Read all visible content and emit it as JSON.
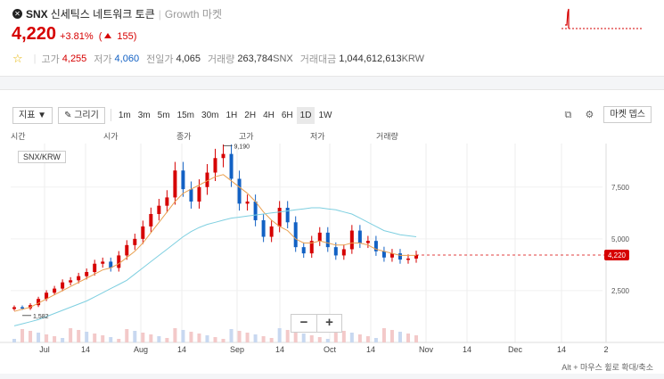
{
  "header": {
    "icon": "close-circle-icon",
    "symbol": "SNX",
    "name_ko": "신세틱스 네트워크 토큰",
    "separator": "|",
    "market": "Growth 마켓",
    "price": "4,220",
    "change_pct": "+3.81%",
    "change_abs_open": "(",
    "change_abs": "155",
    "change_abs_close": ")",
    "stats": [
      {
        "label": "고가",
        "value": "4,255",
        "tone": "red"
      },
      {
        "label": "저가",
        "value": "4,060",
        "tone": "blue"
      },
      {
        "label": "전일가",
        "value": "4,065",
        "tone": "plain"
      },
      {
        "label": "거래량",
        "value": "263,784",
        "unit": "SNX",
        "tone": "plain"
      },
      {
        "label": "거래대금",
        "value": "1,044,612,613",
        "unit": "KRW",
        "tone": "plain"
      }
    ],
    "colors": {
      "up": "#d60000",
      "down": "#1261c4"
    }
  },
  "toolbar": {
    "indicator_label": "지표 ▼",
    "draw_label": "✎ 그리기",
    "intervals": [
      "1m",
      "3m",
      "5m",
      "15m",
      "30m",
      "1H",
      "2H",
      "4H",
      "6H",
      "1D",
      "1W"
    ],
    "active_interval": "1D",
    "market_depth_label": "마켓 뎁스",
    "icons": [
      "popout-icon",
      "settings-icon"
    ]
  },
  "chart": {
    "ohlc_labels": [
      "시간",
      "시가",
      "종가",
      "고가",
      "저가",
      "거래량"
    ],
    "pair": "SNX/KRW",
    "zoom_out": "−",
    "zoom_in": "+",
    "hint": "Alt + 마우스 휠로 확대/축소"
  },
  "chart_data": {
    "type": "line",
    "title": "",
    "x_ticks": [
      "Jul",
      "14",
      "Aug",
      "14",
      "Sep",
      "14",
      "Oct",
      "14",
      "Nov",
      "14",
      "Dec",
      "14",
      "2"
    ],
    "y_ticks": [
      "7,500",
      "5,000",
      "2,500"
    ],
    "ylim": [
      0,
      9600
    ],
    "current_price": 4220,
    "high_marker": "9,190",
    "low_marker": "1,582",
    "series": [
      {
        "values": [
          1700,
          1650,
          1800,
          2100,
          2400,
          2600,
          2900,
          3000,
          3200,
          3400,
          3800,
          3900,
          3600,
          4200,
          4700,
          5000,
          5600,
          6200,
          6600,
          7000,
          8300,
          7400,
          6800,
          7500,
          8200,
          8900,
          9100,
          7900,
          6700,
          6800,
          5900,
          5100,
          5600,
          6500,
          5800,
          4600,
          4300,
          4900,
          5300,
          4600,
          4200,
          4500,
          5400,
          4800,
          4900,
          4400,
          4100,
          4300,
          4000,
          4050,
          4220
        ]
      }
    ],
    "moving_averages": [
      {
        "values": [
          1500,
          1600,
          1700,
          1900,
          2100,
          2300,
          2500,
          2700,
          2900,
          3100,
          3300,
          3500,
          3600,
          3800,
          4100,
          4400,
          4800,
          5300,
          5800,
          6300,
          6800,
          7200,
          7400,
          7600,
          7800,
          8000,
          8100,
          7800,
          7500,
          7200,
          6800,
          6300,
          5900,
          5600,
          5400,
          5000,
          4800,
          4800,
          4900,
          4800,
          4700,
          4700,
          4800,
          4800,
          4700,
          4500,
          4400,
          4300,
          4200,
          4200,
          4200
        ],
        "color": "#e9a050"
      },
      {
        "values": [
          800,
          900,
          1000,
          1100,
          1250,
          1400,
          1550,
          1700,
          1850,
          2000,
          2200,
          2400,
          2600,
          2800,
          3000,
          3300,
          3600,
          3900,
          4200,
          4500,
          4800,
          5100,
          5350,
          5550,
          5700,
          5800,
          5900,
          6000,
          6050,
          6100,
          6150,
          6200,
          6250,
          6300,
          6350,
          6400,
          6450,
          6500,
          6500,
          6450,
          6400,
          6300,
          6200,
          6000,
          5800,
          5600,
          5400,
          5300,
          5200,
          5150,
          5100
        ],
        "color": "#7ecfe0"
      }
    ]
  }
}
